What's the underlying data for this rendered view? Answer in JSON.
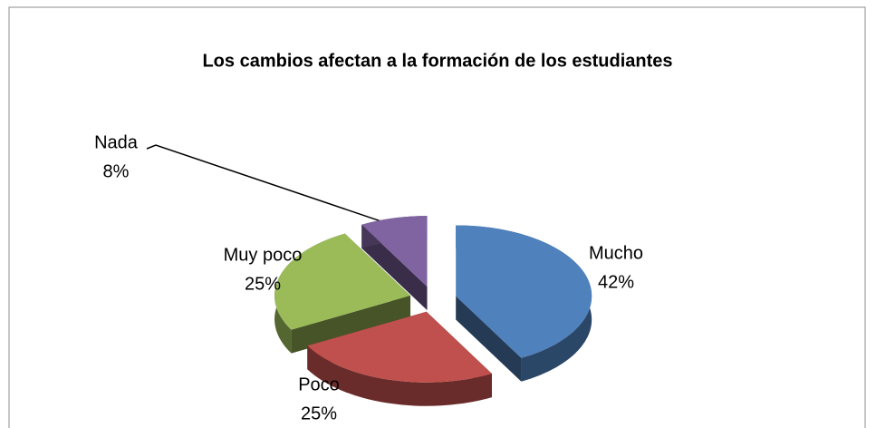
{
  "chart_data": {
    "type": "pie",
    "title": "Los cambios afectan a la formación de los estudiantes",
    "categories": [
      "Mucho",
      "Poco",
      "Muy poco",
      "Nada"
    ],
    "values": [
      42,
      25,
      25,
      8
    ],
    "value_labels": [
      "42%",
      "25%",
      "25%",
      "8%"
    ],
    "colors": [
      "#4f81bd",
      "#c0504d",
      "#9bbb59",
      "#8064a2"
    ]
  }
}
